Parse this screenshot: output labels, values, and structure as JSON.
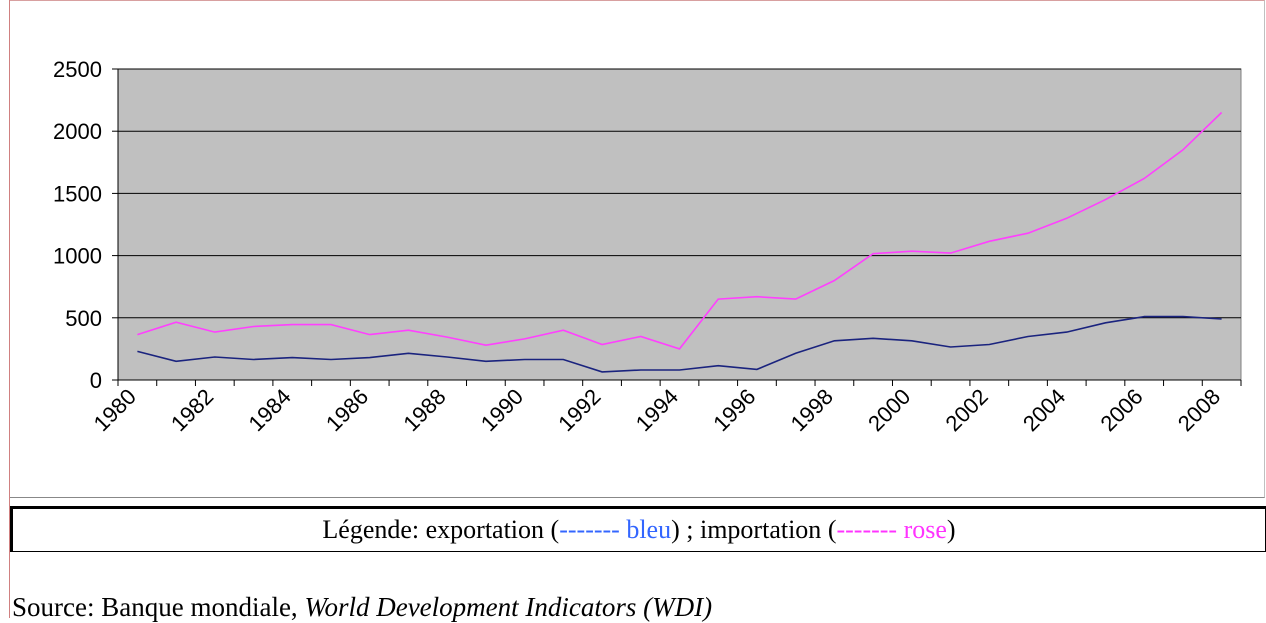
{
  "chart_data": {
    "type": "line",
    "categories": [
      1980,
      null,
      1982,
      null,
      1984,
      null,
      1986,
      null,
      1988,
      null,
      1990,
      null,
      1992,
      null,
      1994,
      null,
      1996,
      null,
      1998,
      null,
      2000,
      null,
      2002,
      null,
      2004,
      null,
      2006,
      null,
      2008
    ],
    "series": [
      {
        "name": "exportation",
        "color": "#1a237e",
        "values": [
          230,
          150,
          185,
          165,
          180,
          165,
          180,
          215,
          185,
          150,
          165,
          165,
          65,
          80,
          80,
          115,
          85,
          215,
          315,
          335,
          315,
          265,
          285,
          350,
          385,
          460,
          510,
          510,
          490
        ]
      },
      {
        "name": "importation",
        "color": "#ff40ff",
        "values": [
          365,
          465,
          385,
          430,
          445,
          445,
          365,
          400,
          345,
          280,
          330,
          400,
          285,
          350,
          250,
          650,
          670,
          650,
          800,
          1015,
          1035,
          1020,
          1115,
          1180,
          1300,
          1450,
          1620,
          1850,
          2150
        ]
      }
    ],
    "ylim": [
      0,
      2500
    ],
    "yticks": [
      0,
      500,
      1000,
      1500,
      2000,
      2500
    ],
    "grid": true,
    "plot_background": "#c0c0c0",
    "legend": {
      "title": "Légende:",
      "open": "(",
      "keys": [
        {
          "text": "------- bleu",
          "color": "#3366ff"
        },
        {
          "text": "------- rose",
          "color": "#ff33ff"
        }
      ],
      "separator": ") ;",
      "close": ")"
    }
  },
  "source": {
    "label": "Source: Banque mondiale,",
    "title": "World Development Indicators (WDI)"
  }
}
